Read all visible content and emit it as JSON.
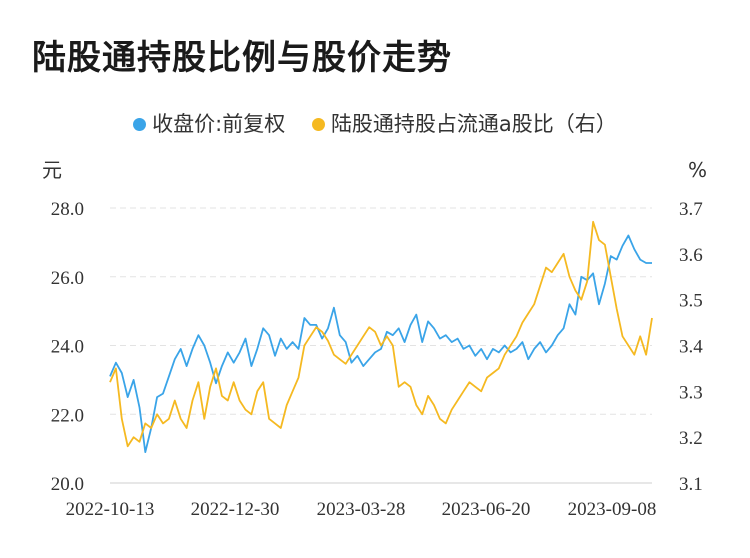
{
  "chart_data": {
    "type": "line",
    "title": "陆股通持股比例与股价走势",
    "left_unit": "元",
    "right_unit": "%",
    "left_ylim": [
      20.0,
      28.0
    ],
    "left_ticks": [
      "28.0",
      "26.0",
      "24.0",
      "22.0",
      "20.0"
    ],
    "right_ylim": [
      3.1,
      3.7
    ],
    "right_ticks": [
      "3.7",
      "3.6",
      "3.5",
      "3.4",
      "3.3",
      "3.2",
      "3.1"
    ],
    "x_tick_labels": [
      "2022-10-13",
      "2022-12-30",
      "2023-03-28",
      "2023-06-20",
      "2023-09-08"
    ],
    "colors": {
      "price": "#3aa4e8",
      "ratio": "#f5b921"
    },
    "series": [
      {
        "name": "收盘价:前复权",
        "axis": "left",
        "values": [
          23.1,
          23.5,
          23.2,
          22.5,
          23.0,
          22.2,
          20.9,
          21.6,
          22.5,
          22.6,
          23.1,
          23.6,
          23.9,
          23.4,
          23.9,
          24.3,
          24.0,
          23.5,
          22.9,
          23.4,
          23.8,
          23.5,
          23.8,
          24.2,
          23.4,
          23.9,
          24.5,
          24.3,
          23.7,
          24.2,
          23.9,
          24.1,
          23.9,
          24.8,
          24.6,
          24.6,
          24.2,
          24.5,
          25.1,
          24.3,
          24.1,
          23.5,
          23.7,
          23.4,
          23.6,
          23.8,
          23.9,
          24.4,
          24.3,
          24.5,
          24.1,
          24.6,
          24.9,
          24.1,
          24.7,
          24.5,
          24.2,
          24.3,
          24.1,
          24.2,
          23.9,
          24.0,
          23.7,
          23.9,
          23.6,
          23.9,
          23.8,
          24.0,
          23.8,
          23.9,
          24.1,
          23.6,
          23.9,
          24.1,
          23.8,
          24.0,
          24.3,
          24.5,
          25.2,
          24.9,
          26.0,
          25.9,
          26.1,
          25.2,
          25.8,
          26.6,
          26.5,
          26.9,
          27.2,
          26.8,
          26.5,
          26.4,
          26.4
        ]
      },
      {
        "name": "陆股通持股占流通a股比（右）",
        "axis": "right",
        "values": [
          3.32,
          3.35,
          3.24,
          3.18,
          3.2,
          3.19,
          3.23,
          3.22,
          3.25,
          3.23,
          3.24,
          3.28,
          3.24,
          3.22,
          3.28,
          3.32,
          3.24,
          3.31,
          3.35,
          3.29,
          3.28,
          3.32,
          3.28,
          3.26,
          3.25,
          3.3,
          3.32,
          3.24,
          3.23,
          3.22,
          3.27,
          3.3,
          3.33,
          3.4,
          3.42,
          3.44,
          3.43,
          3.41,
          3.38,
          3.37,
          3.36,
          3.38,
          3.4,
          3.42,
          3.44,
          3.43,
          3.4,
          3.42,
          3.4,
          3.31,
          3.32,
          3.31,
          3.27,
          3.25,
          3.29,
          3.27,
          3.24,
          3.23,
          3.26,
          3.28,
          3.3,
          3.32,
          3.31,
          3.3,
          3.33,
          3.34,
          3.35,
          3.38,
          3.4,
          3.42,
          3.45,
          3.47,
          3.49,
          3.53,
          3.57,
          3.56,
          3.58,
          3.6,
          3.55,
          3.52,
          3.5,
          3.54,
          3.67,
          3.63,
          3.62,
          3.55,
          3.48,
          3.42,
          3.4,
          3.38,
          3.42,
          3.38,
          3.46
        ]
      }
    ]
  }
}
